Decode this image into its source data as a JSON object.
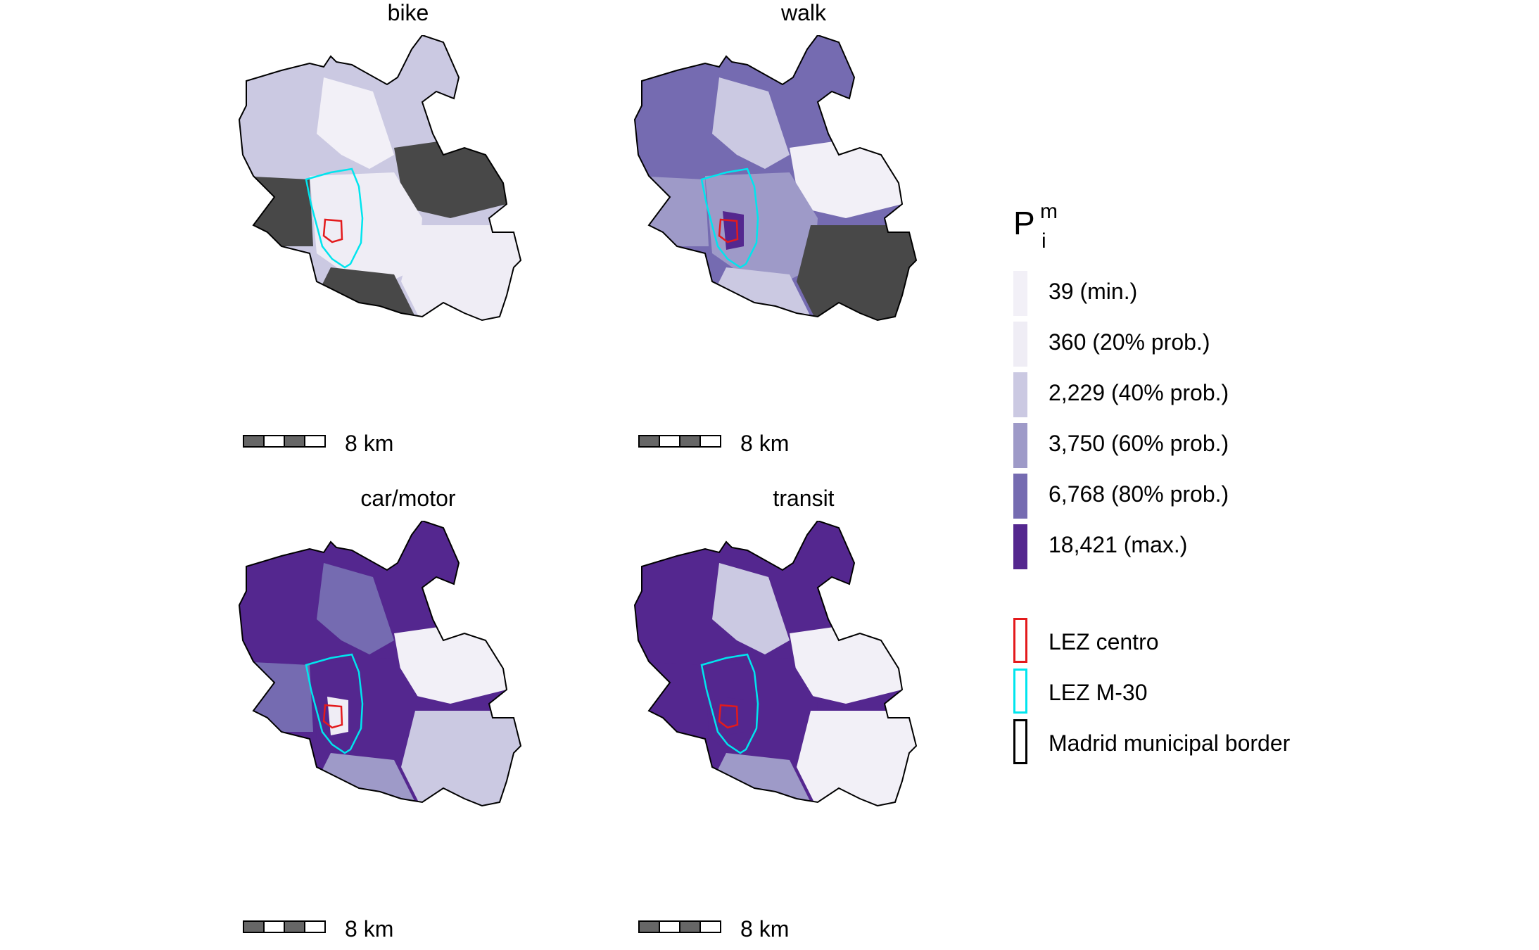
{
  "panels": [
    {
      "title": "bike",
      "colors": {
        "base": "#cbc9e2",
        "north": "#f2f0f7",
        "center": "#efedf5",
        "east": "#484848",
        "west": "#484848",
        "south": "#484848",
        "inner": "#efedf5",
        "se": "#efedf5"
      },
      "scale_label": "8 km"
    },
    {
      "title": "walk",
      "colors": {
        "base": "#756bb1",
        "north": "#cbc9e2",
        "center": "#9e9ac8",
        "east": "#f2f0f7",
        "west": "#9e9ac8",
        "south": "#cbc9e2",
        "inner": "#54278f",
        "se": "#484848"
      },
      "scale_label": "8 km"
    },
    {
      "title": "car/motor",
      "colors": {
        "base": "#54278f",
        "north": "#756bb1",
        "center": "#54278f",
        "east": "#f2f0f7",
        "west": "#756bb1",
        "south": "#9e9ac8",
        "inner": "#efedf5",
        "se": "#cbc9e2"
      },
      "scale_label": "8 km"
    },
    {
      "title": "transit",
      "colors": {
        "base": "#54278f",
        "north": "#cbc9e2",
        "center": "#54278f",
        "east": "#f2f0f7",
        "west": "#54278f",
        "south": "#9e9ac8",
        "inner": "#54278f",
        "se": "#f2f0f7"
      },
      "scale_label": "8 km"
    }
  ],
  "legend": {
    "title": "P",
    "title_sup": "m",
    "title_sub": "i",
    "classes": [
      {
        "label": "39 (min.)",
        "color": "#f2f0f7"
      },
      {
        "label": "360 (20% prob.)",
        "color": "#efedf5"
      },
      {
        "label": "2,229 (40% prob.)",
        "color": "#cbc9e2"
      },
      {
        "label": "3,750 (60% prob.)",
        "color": "#9e9ac8"
      },
      {
        "label": "6,768 (80% prob.)",
        "color": "#756bb1"
      },
      {
        "label": "18,421 (max.)",
        "color": "#54278f"
      }
    ],
    "boundaries": [
      {
        "label": "LEZ centro",
        "color": "#e31a1c"
      },
      {
        "label": "LEZ M-30",
        "color": "#00e5ee"
      },
      {
        "label": "Madrid municipal border",
        "color": "#000000"
      }
    ]
  }
}
